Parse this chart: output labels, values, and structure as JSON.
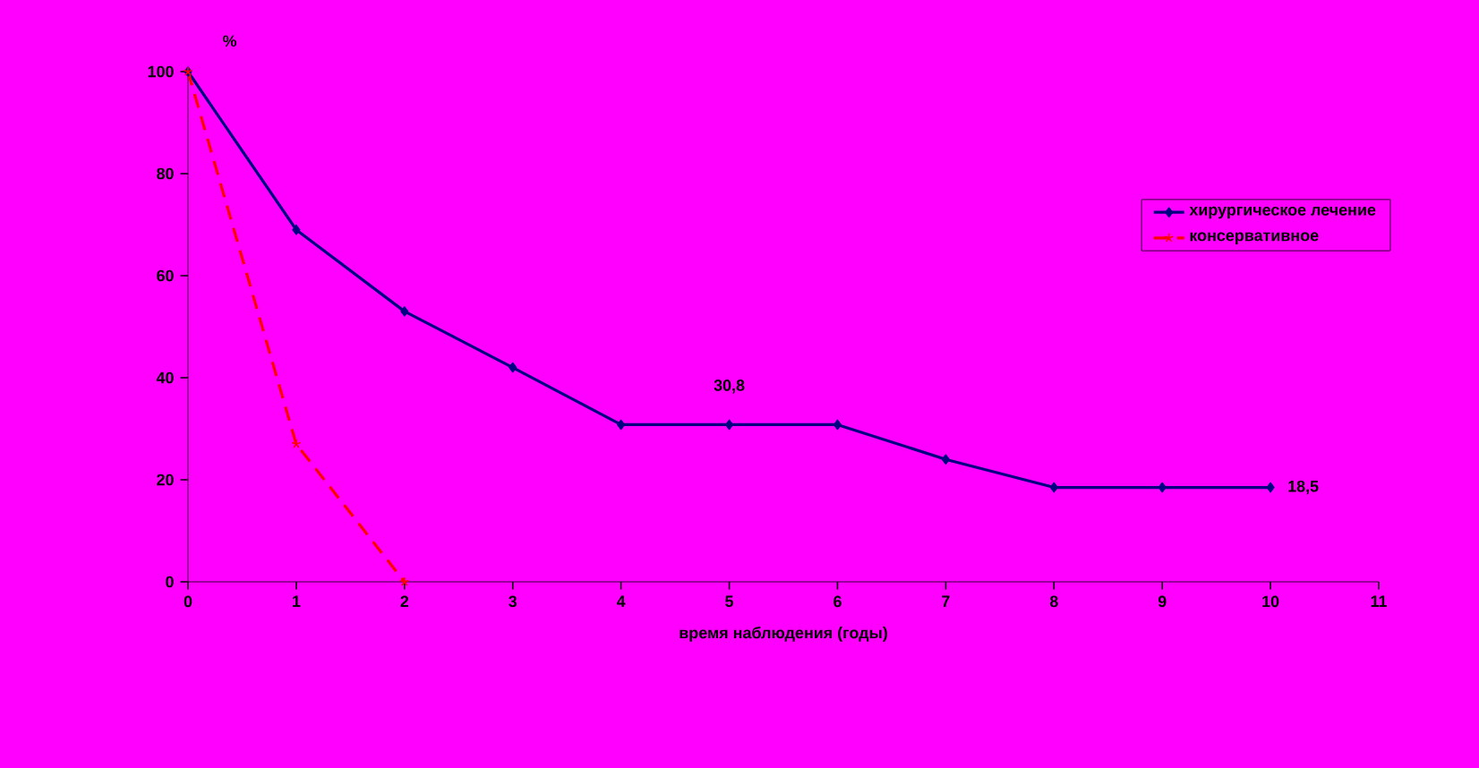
{
  "chart_data": {
    "type": "line",
    "ylabel": "%",
    "xlabel": "время наблюдения (годы)",
    "xlim": [
      0,
      11
    ],
    "xticks": [
      0,
      1,
      2,
      3,
      4,
      5,
      6,
      7,
      8,
      9,
      10,
      11
    ],
    "ylim": [
      0,
      100
    ],
    "yticks": [
      0,
      20,
      40,
      60,
      80,
      100
    ],
    "grid": false,
    "legend": "top right",
    "series": [
      {
        "name": "хирургическое лечение",
        "color": "#000080",
        "marker": "diamond",
        "line_style": "solid",
        "x": [
          0,
          1,
          2,
          3,
          4,
          5,
          6,
          7,
          8,
          9,
          10
        ],
        "values": [
          100,
          69,
          53,
          42,
          30.8,
          30.8,
          30.8,
          24,
          18.5,
          18.5,
          18.5
        ]
      },
      {
        "name": "консервативное",
        "color": "#ff0000",
        "marker": "cross",
        "line_style": "dashed",
        "x": [
          0,
          1,
          2
        ],
        "values": [
          100,
          27,
          0
        ]
      }
    ],
    "annotations": [
      {
        "text": "30,8",
        "x": 5,
        "y": 30.8
      },
      {
        "text": "18,5",
        "x": 10,
        "y": 18.5
      }
    ]
  }
}
